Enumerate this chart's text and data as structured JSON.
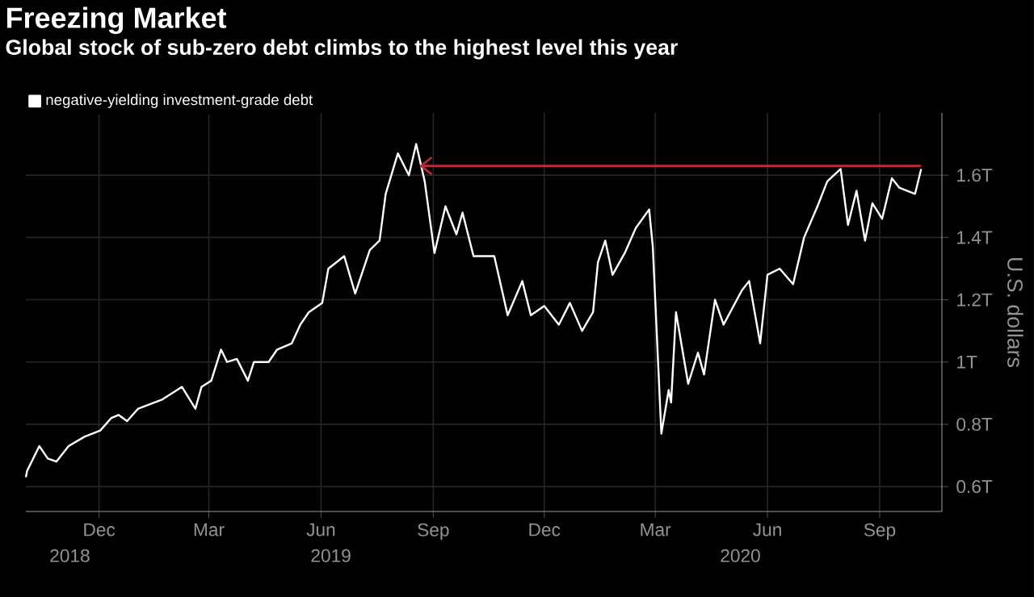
{
  "chart_data": {
    "type": "line",
    "title": "Freezing Market",
    "subtitle": "Global stock of sub-zero debt climbs to the highest level this year",
    "ylabel": "U.S. dollars",
    "annotations": [
      "2018",
      "2019",
      "2020"
    ],
    "series": [
      {
        "name": "negative-yielding investment-grade debt",
        "color": "#ffffff",
        "x": [
          "2018-10-02",
          "2018-10-03",
          "2018-10-13",
          "2018-10-20",
          "2018-10-27",
          "2018-11-06",
          "2018-11-19",
          "2018-12-02",
          "2018-12-11",
          "2018-12-17",
          "2018-12-24",
          "2019-01-02",
          "2019-01-22",
          "2019-02-07",
          "2019-02-18",
          "2019-02-23",
          "2019-03-03",
          "2019-03-11",
          "2019-03-16",
          "2019-03-24",
          "2019-04-02",
          "2019-04-07",
          "2019-04-19",
          "2019-04-26",
          "2019-05-08",
          "2019-05-15",
          "2019-05-22",
          "2019-06-02",
          "2019-06-07",
          "2019-06-20",
          "2019-06-29",
          "2019-07-11",
          "2019-07-19",
          "2019-07-24",
          "2019-08-03",
          "2019-08-12",
          "2019-08-18",
          "2019-08-25",
          "2019-09-02",
          "2019-09-11",
          "2019-09-20",
          "2019-09-25",
          "2019-10-04",
          "2019-10-21",
          "2019-11-01",
          "2019-11-13",
          "2019-11-20",
          "2019-12-01",
          "2019-12-13",
          "2019-12-22",
          "2020-01-01",
          "2020-01-10",
          "2020-01-14",
          "2020-01-20",
          "2020-01-26",
          "2020-02-05",
          "2020-02-14",
          "2020-02-25",
          "2020-02-28",
          "2020-03-06",
          "2020-03-12",
          "2020-03-14",
          "2020-03-18",
          "2020-03-28",
          "2020-04-05",
          "2020-04-10",
          "2020-04-19",
          "2020-04-26",
          "2020-05-11",
          "2020-05-17",
          "2020-05-26",
          "2020-06-01",
          "2020-06-11",
          "2020-06-22",
          "2020-07-01",
          "2020-07-12",
          "2020-07-20",
          "2020-07-31",
          "2020-08-06",
          "2020-08-13",
          "2020-08-20",
          "2020-08-26",
          "2020-09-03",
          "2020-09-11",
          "2020-09-17",
          "2020-09-30",
          "2020-10-05"
        ],
        "values": [
          0.63,
          0.65,
          0.73,
          0.69,
          0.68,
          0.73,
          0.76,
          0.78,
          0.82,
          0.83,
          0.81,
          0.85,
          0.88,
          0.92,
          0.85,
          0.92,
          0.94,
          1.04,
          1.0,
          1.01,
          0.94,
          1.0,
          1.0,
          1.04,
          1.06,
          1.12,
          1.16,
          1.19,
          1.3,
          1.34,
          1.22,
          1.36,
          1.39,
          1.54,
          1.67,
          1.6,
          1.7,
          1.58,
          1.35,
          1.5,
          1.41,
          1.48,
          1.34,
          1.34,
          1.15,
          1.26,
          1.15,
          1.18,
          1.12,
          1.19,
          1.1,
          1.16,
          1.32,
          1.39,
          1.28,
          1.35,
          1.43,
          1.49,
          1.37,
          0.77,
          0.91,
          0.87,
          1.16,
          0.93,
          1.03,
          0.96,
          1.2,
          1.12,
          1.23,
          1.26,
          1.06,
          1.28,
          1.3,
          1.25,
          1.4,
          1.5,
          1.58,
          1.62,
          1.44,
          1.55,
          1.39,
          1.51,
          1.46,
          1.59,
          1.56,
          1.54,
          1.62
        ]
      },
      {
        "color": "#c0283c",
        "x": [
          "2019-08-22",
          "2020-10-05"
        ],
        "values": [
          1.63,
          1.63
        ]
      }
    ],
    "xlim": [
      "2018-10-02",
      "2020-10-22"
    ],
    "xticks": [
      {
        "value": "2018-12-01",
        "label": "Dec"
      },
      {
        "value": "2019-03-01",
        "label": "Mar"
      },
      {
        "value": "2019-06-01",
        "label": "Jun"
      },
      {
        "value": "2019-09-01",
        "label": "Sep"
      },
      {
        "value": "2019-12-01",
        "label": "Dec"
      },
      {
        "value": "2020-03-01",
        "label": "Mar"
      },
      {
        "value": "2020-06-01",
        "label": "Jun"
      },
      {
        "value": "2020-09-01",
        "label": "Sep"
      }
    ],
    "ylim": [
      0.52,
      1.8
    ],
    "yticks": [
      {
        "value": 0.6,
        "label": "0.6T"
      },
      {
        "value": 0.8,
        "label": "0.8T"
      },
      {
        "value": 1,
        "label": "1T"
      },
      {
        "value": 1.2,
        "label": "1.2T"
      },
      {
        "value": 1.4,
        "label": "1.4T"
      },
      {
        "value": 1.6,
        "label": "1.6T"
      }
    ],
    "grid": true,
    "legend": "top left",
    "marker": "none",
    "line_style": "solid"
  }
}
